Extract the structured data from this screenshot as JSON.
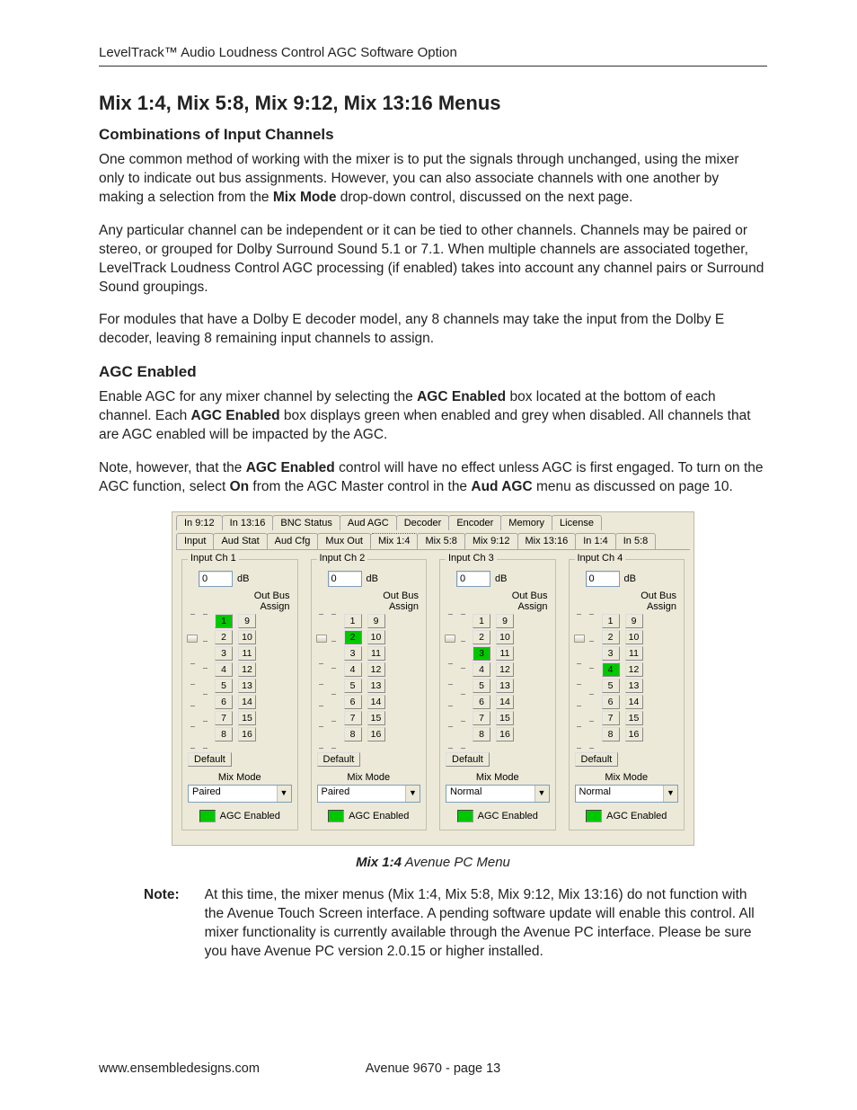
{
  "header": {
    "running": "LevelTrack™ Audio Loudness Control AGC Software Option"
  },
  "title": "Mix 1:4, Mix 5:8, Mix 9:12, Mix 13:16 Menus",
  "subhead1": "Combinations of Input Channels",
  "para1a": "One common method of working with the mixer is to put the signals through unchanged, using the mixer only to indicate out bus assignments. However, you can also associate channels with one another by making a selection from the ",
  "para1b_bold": "Mix Mode",
  "para1c": " drop-down control, discussed on the next page.",
  "para2": "Any particular channel can be independent or it can be tied to other channels. Channels may be paired or stereo, or grouped for Dolby Surround Sound 5.1 or 7.1. When multiple channels are associated together, LevelTrack Loudness Control AGC processing (if enabled) takes into account any channel pairs or Surround Sound groupings.",
  "para3": "For modules that have a Dolby E decoder model, any 8 channels may take the input from the Dolby E decoder, leaving 8 remaining input channels to assign.",
  "subhead2": "AGC Enabled",
  "para4a": "Enable AGC for any mixer channel by selecting the ",
  "para4b_bold": "AGC Enabled",
  "para4c": " box located at the bottom of each channel. Each ",
  "para4d_bold": "AGC Enabled",
  "para4e": " box displays green when enabled and grey when disabled. All channels that are AGC enabled will be impacted by the AGC.",
  "para5a": "Note, however, that the ",
  "para5b_bold": "AGC Enabled",
  "para5c": " control will have no effect unless AGC is first engaged. To turn on the AGC function, select ",
  "para5d_bold": "On",
  "para5e": " from the AGC Master control in the ",
  "para5f_bold": "Aud AGC",
  "para5g": " menu as discussed on page 10.",
  "ui": {
    "colors": {
      "panel_bg": "#ece9d8",
      "button_active": "#00c800",
      "input_border": "#7f9db9"
    },
    "tabs_row1": [
      "In 9:12",
      "In 13:16",
      "BNC Status",
      "Aud AGC",
      "Decoder",
      "Encoder",
      "Memory",
      "License"
    ],
    "tabs_row2": [
      "Input",
      "Aud Stat",
      "Aud Cfg",
      "Mux Out",
      "Mix 1:4",
      "Mix 5:8",
      "Mix 9:12",
      "Mix 13:16",
      "In 1:4",
      "In 5:8"
    ],
    "active_tab": "Mix 1:4",
    "db_unit": "dB",
    "outbus_label1": "Out Bus",
    "outbus_label2": "Assign",
    "default_label": "Default",
    "mixmode_label": "Mix Mode",
    "agc_label": "AGC Enabled",
    "outbus_left": [
      "1",
      "2",
      "3",
      "4",
      "5",
      "6",
      "7",
      "8"
    ],
    "outbus_right": [
      "9",
      "10",
      "11",
      "12",
      "13",
      "14",
      "15",
      "16"
    ],
    "channels": [
      {
        "title": "Input Ch 1",
        "db": "0",
        "active_buses": [
          "1"
        ],
        "mix_mode": "Paired",
        "agc_enabled": true
      },
      {
        "title": "Input Ch 2",
        "db": "0",
        "active_buses": [
          "2"
        ],
        "mix_mode": "Paired",
        "agc_enabled": true
      },
      {
        "title": "Input Ch 3",
        "db": "0",
        "active_buses": [
          "3"
        ],
        "mix_mode": "Normal",
        "agc_enabled": true
      },
      {
        "title": "Input Ch 4",
        "db": "0",
        "active_buses": [
          "4"
        ],
        "mix_mode": "Normal",
        "agc_enabled": true
      }
    ]
  },
  "caption_bold": "Mix 1:4",
  "caption_rest": " Avenue PC Menu",
  "note_label": "Note",
  "note_body": "At this time, the mixer menus (Mix 1:4, Mix 5:8, Mix 9:12, Mix 13:16) do not function with the Avenue Touch Screen interface. A pending software update will enable this control. All mixer functionality is currently available through the Avenue PC interface. Please be sure you have Avenue PC version 2.0.15 or higher installed.",
  "footer": {
    "left": "www.ensembledesigns.com",
    "center": "Avenue 9670 - page 13"
  }
}
